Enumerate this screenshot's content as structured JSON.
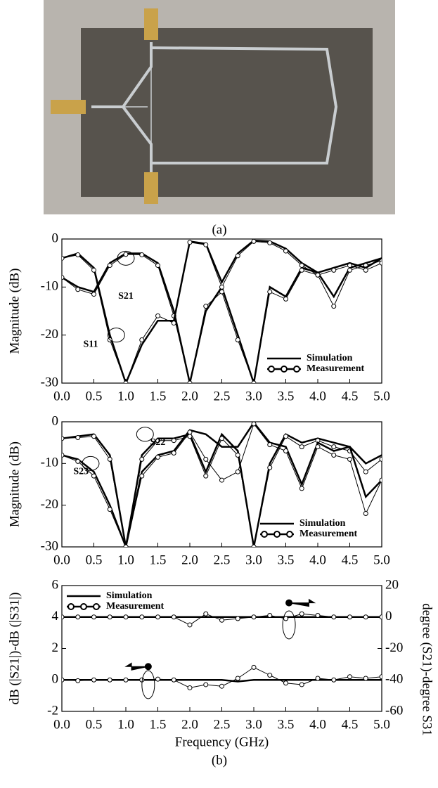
{
  "labels": {
    "a": "(a)",
    "b": "(b)"
  },
  "chart_data": [
    {
      "type": "line",
      "ylabel": "Magnitude (dB)",
      "x": [
        0,
        0.25,
        0.5,
        0.75,
        1,
        1.25,
        1.5,
        1.75,
        2,
        2.25,
        2.5,
        2.75,
        3,
        3.25,
        3.5,
        3.75,
        4,
        4.25,
        4.5,
        4.75,
        5
      ],
      "xlim": [
        0,
        5
      ],
      "xticks": [
        {
          "value": 0,
          "label": "0.0"
        },
        0.5,
        {
          "value": 1,
          "label": "1.0"
        },
        1.5,
        {
          "value": 2,
          "label": "2.0"
        },
        2.5,
        {
          "value": 3,
          "label": "3.0"
        },
        3.5,
        {
          "value": 4,
          "label": "4.0"
        },
        4.5,
        {
          "value": 5,
          "label": "5.0"
        }
      ],
      "ylim": [
        -30,
        0
      ],
      "yticks": [
        -30,
        -20,
        -10,
        0
      ],
      "legend": [
        "Simulation",
        "Measurement"
      ],
      "series": [
        {
          "name": "S21",
          "simulation": [
            -8,
            -10,
            -11,
            -5,
            -3,
            -3,
            -5,
            -15,
            -30,
            -15,
            -10,
            -20,
            -30,
            -10,
            -12,
            -6,
            -7,
            -12,
            -6,
            -5,
            -4
          ],
          "measurement": [
            -8,
            -10.5,
            -11.5,
            -5.5,
            -3.2,
            -3.3,
            -5.5,
            -16,
            -30,
            -14,
            -11,
            -21,
            -30,
            -11,
            -12.5,
            -6.5,
            -7.5,
            -14,
            -6.5,
            -5.5,
            -4.5
          ]
        },
        {
          "name": "S11",
          "simulation": [
            -4,
            -3,
            -6,
            -20,
            -30,
            -22,
            -17,
            -17,
            -0.5,
            -1,
            -9,
            -3,
            -0.3,
            -0.5,
            -2,
            -5,
            -7,
            -6,
            -5,
            -6,
            -4
          ],
          "measurement": [
            -4,
            -3.3,
            -6.5,
            -21,
            -30,
            -21,
            -16,
            -17.5,
            -0.7,
            -1.2,
            -10,
            -3.5,
            -0.5,
            -0.8,
            -2.5,
            -5.5,
            -7.5,
            -6.5,
            -5.5,
            -6.5,
            -5
          ]
        }
      ]
    },
    {
      "type": "line",
      "ylabel": "Magnitude (dB)",
      "x": [
        0,
        0.25,
        0.5,
        0.75,
        1,
        1.25,
        1.5,
        1.75,
        2,
        2.25,
        2.5,
        2.75,
        3,
        3.25,
        3.5,
        3.75,
        4,
        4.25,
        4.5,
        4.75,
        5
      ],
      "xlim": [
        0,
        5
      ],
      "xticks": [
        {
          "value": 0,
          "label": "0.0"
        },
        0.5,
        {
          "value": 1,
          "label": "1.0"
        },
        1.5,
        {
          "value": 2,
          "label": "2.0"
        },
        2.5,
        {
          "value": 3,
          "label": "3.0"
        },
        3.5,
        {
          "value": 4,
          "label": "4.0"
        },
        4.5,
        {
          "value": 5,
          "label": "5.0"
        }
      ],
      "ylim": [
        -30,
        0
      ],
      "yticks": [
        -30,
        -20,
        -10,
        0
      ],
      "legend": [
        "Simulation",
        "Measurement"
      ],
      "series": [
        {
          "name": "S22",
          "simulation": [
            -4,
            -3.5,
            -3,
            -8,
            -30,
            -8,
            -4,
            -4,
            -3,
            -12,
            -3,
            -7,
            -30,
            -10,
            -3,
            -5,
            -4,
            -5,
            -6,
            -10,
            -8
          ],
          "measurement": [
            -4,
            -3.8,
            -3.5,
            -9,
            -30,
            -9,
            -4.5,
            -4.5,
            -3.5,
            -13,
            -4,
            -8,
            -30,
            -11,
            -3.5,
            -6,
            -4.5,
            -6,
            -7,
            -12,
            -9
          ]
        },
        {
          "name": "S23",
          "simulation": [
            -8,
            -9,
            -12,
            -20,
            -30,
            -12,
            -8,
            -7,
            -2,
            -3,
            -6,
            -6,
            -0.2,
            -5,
            -6,
            -15,
            -5,
            -7,
            -6,
            -18,
            -14
          ],
          "measurement": [
            -8,
            -9.5,
            -13,
            -21,
            -30,
            -13,
            -8.5,
            -7.5,
            -2.5,
            -9,
            -14,
            -12,
            -0.5,
            -5.5,
            -7,
            -16,
            -6,
            -8,
            -9,
            -22,
            -14
          ]
        }
      ]
    },
    {
      "type": "line",
      "ylabel": "dB (|S21|)-dB (|S31|)",
      "y2label": "degree (S21)-degree S31",
      "xlabel": "Frequency (GHz)",
      "x": [
        0,
        0.25,
        0.5,
        0.75,
        1,
        1.25,
        1.5,
        1.75,
        2,
        2.25,
        2.5,
        2.75,
        3,
        3.25,
        3.5,
        3.75,
        4,
        4.25,
        4.5,
        4.75,
        5
      ],
      "xlim": [
        0,
        5
      ],
      "xticks": [
        {
          "value": 0,
          "label": "0.0"
        },
        0.5,
        {
          "value": 1,
          "label": "1.0"
        },
        1.5,
        {
          "value": 2,
          "label": "2.0"
        },
        2.5,
        {
          "value": 3,
          "label": "3.0"
        },
        3.5,
        {
          "value": 4,
          "label": "4.0"
        },
        4.5,
        {
          "value": 5,
          "label": "5.0"
        }
      ],
      "ylim": [
        -2,
        6
      ],
      "yticks": [
        -2,
        0,
        2,
        4,
        6
      ],
      "y2lim": [
        -60,
        20
      ],
      "y2ticks": [
        -60,
        -40,
        -20,
        0,
        20
      ],
      "legend": [
        "Simulation",
        "Measurement"
      ],
      "series": [
        {
          "axis": "y",
          "simulation": [
            0,
            0,
            0,
            0,
            0,
            0,
            0,
            0,
            0,
            0,
            0,
            -0.1,
            0,
            0,
            0,
            0,
            0,
            0,
            0,
            0,
            0
          ],
          "measurement": [
            0,
            -0.05,
            0,
            0,
            0,
            0,
            0.05,
            0,
            -0.5,
            -0.3,
            -0.4,
            0.1,
            0.8,
            0.3,
            -0.2,
            -0.3,
            0.1,
            0,
            0.2,
            0.1,
            0.2
          ]
        },
        {
          "axis": "y2",
          "simulation": [
            0,
            0,
            0,
            0,
            0,
            0,
            0,
            0,
            0,
            0,
            0,
            0,
            0,
            0,
            0,
            0,
            0,
            0,
            0,
            0,
            0
          ],
          "measurement": [
            0,
            0,
            0,
            0,
            0,
            0,
            0,
            0,
            -5,
            2,
            -2,
            -1,
            0,
            1,
            -1,
            2,
            1,
            0,
            0,
            0,
            0
          ]
        }
      ]
    }
  ]
}
